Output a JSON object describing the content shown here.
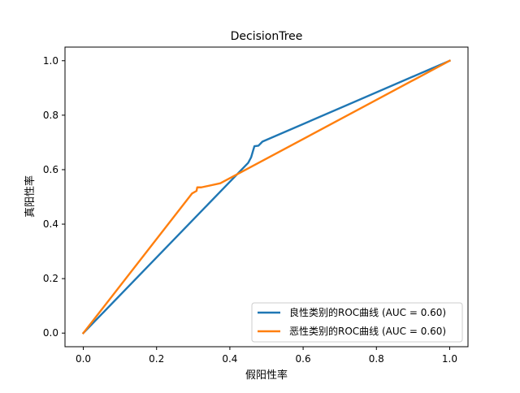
{
  "chart_data": {
    "type": "line",
    "title": "DecisionTree",
    "xlabel": "假阳性率",
    "ylabel": "真阳性率",
    "xlim": [
      -0.05,
      1.05
    ],
    "ylim": [
      -0.05,
      1.05
    ],
    "xticks": [
      0.0,
      0.2,
      0.4,
      0.6,
      0.8,
      1.0
    ],
    "yticks": [
      0.0,
      0.2,
      0.4,
      0.6,
      0.8,
      1.0
    ],
    "xtick_labels": [
      "0.0",
      "0.2",
      "0.4",
      "0.6",
      "0.8",
      "1.0"
    ],
    "ytick_labels": [
      "0.0",
      "0.2",
      "0.4",
      "0.6",
      "0.8",
      "1.0"
    ],
    "grid": false,
    "legend_position": "bottom-right",
    "series": [
      {
        "name": "良性类别的ROC曲线 (AUC = 0.60)",
        "color": "#1f77b4",
        "points": [
          [
            0.0,
            0.0
          ],
          [
            0.45,
            0.625
          ],
          [
            0.458,
            0.645
          ],
          [
            0.463,
            0.668
          ],
          [
            0.467,
            0.686
          ],
          [
            0.478,
            0.688
          ],
          [
            0.489,
            0.703
          ],
          [
            1.0,
            1.0
          ]
        ]
      },
      {
        "name": "恶性类别的ROC曲线 (AUC = 0.60)",
        "color": "#ff7f0e",
        "points": [
          [
            0.0,
            0.0
          ],
          [
            0.297,
            0.513
          ],
          [
            0.309,
            0.522
          ],
          [
            0.311,
            0.535
          ],
          [
            0.322,
            0.535
          ],
          [
            0.374,
            0.55
          ],
          [
            1.0,
            1.0
          ]
        ]
      }
    ]
  }
}
